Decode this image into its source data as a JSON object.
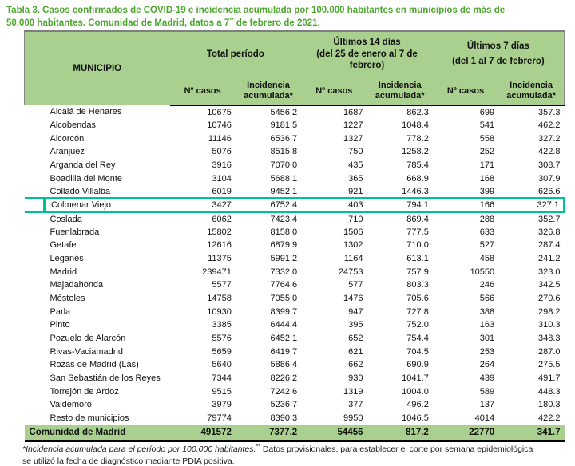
{
  "title": {
    "line1": "Tabla 3. Casos confirmados de COVID-19 e incidencia acumulada por 100.000 habitantes en municipios de más de",
    "line2_prefix": "50.000 habitantes. Comunidad de Madrid, datos a 7",
    "line2_superscript": "**",
    "line2_suffix": " de febrero de 2021."
  },
  "table": {
    "corner_header": "MUNICIPIO",
    "column_groups": [
      {
        "line1": "Total período",
        "line2": ""
      },
      {
        "line1": "Últimos 14 días",
        "line2": "(del 25 de enero al 7 de febrero)"
      },
      {
        "line1": "Últimos 7 días",
        "line2": "(del 1 al 7 de febrero)"
      }
    ],
    "sub_columns": [
      "Nº casos",
      "Incidencia acumulada*",
      "Nº casos",
      "Incidencia acumulada*",
      "Nº casos",
      "Incidencia acumulada*"
    ],
    "rows": [
      {
        "municipio": "Alcalá de Henares",
        "values": [
          "10675",
          "5456.2",
          "1687",
          "862.3",
          "699",
          "357.3"
        ],
        "highlighted": false
      },
      {
        "municipio": "Alcobendas",
        "values": [
          "10746",
          "9181.5",
          "1227",
          "1048.4",
          "541",
          "462.2"
        ],
        "highlighted": false
      },
      {
        "municipio": "Alcorcón",
        "values": [
          "11146",
          "6536.7",
          "1327",
          "778.2",
          "558",
          "327.2"
        ],
        "highlighted": false
      },
      {
        "municipio": "Aranjuez",
        "values": [
          "5076",
          "8515.8",
          "750",
          "1258.2",
          "252",
          "422.8"
        ],
        "highlighted": false
      },
      {
        "municipio": "Arganda del Rey",
        "values": [
          "3916",
          "7070.0",
          "435",
          "785.4",
          "171",
          "308.7"
        ],
        "highlighted": false
      },
      {
        "municipio": "Boadilla del Monte",
        "values": [
          "3104",
          "5688.1",
          "365",
          "668.9",
          "168",
          "307.9"
        ],
        "highlighted": false
      },
      {
        "municipio": "Collado Villalba",
        "values": [
          "6019",
          "9452.1",
          "921",
          "1446.3",
          "399",
          "626.6"
        ],
        "highlighted": false
      },
      {
        "municipio": "Colmenar Viejo",
        "values": [
          "3427",
          "6752.4",
          "403",
          "794.1",
          "166",
          "327.1"
        ],
        "highlighted": true
      },
      {
        "municipio": "Coslada",
        "values": [
          "6062",
          "7423.4",
          "710",
          "869.4",
          "288",
          "352.7"
        ],
        "highlighted": false
      },
      {
        "municipio": "Fuenlabrada",
        "values": [
          "15802",
          "8158.0",
          "1506",
          "777.5",
          "633",
          "326.8"
        ],
        "highlighted": false
      },
      {
        "municipio": "Getafe",
        "values": [
          "12616",
          "6879.9",
          "1302",
          "710.0",
          "527",
          "287.4"
        ],
        "highlighted": false
      },
      {
        "municipio": "Leganés",
        "values": [
          "11375",
          "5991.2",
          "1164",
          "613.1",
          "458",
          "241.2"
        ],
        "highlighted": false
      },
      {
        "municipio": "Madrid",
        "values": [
          "239471",
          "7332.0",
          "24753",
          "757.9",
          "10550",
          "323.0"
        ],
        "highlighted": false
      },
      {
        "municipio": "Majadahonda",
        "values": [
          "5577",
          "7764.6",
          "577",
          "803.3",
          "246",
          "342.5"
        ],
        "highlighted": false
      },
      {
        "municipio": "Móstoles",
        "values": [
          "14758",
          "7055.0",
          "1476",
          "705.6",
          "566",
          "270.6"
        ],
        "highlighted": false
      },
      {
        "municipio": "Parla",
        "values": [
          "10930",
          "8399.7",
          "947",
          "727.8",
          "388",
          "298.2"
        ],
        "highlighted": false
      },
      {
        "municipio": "Pinto",
        "values": [
          "3385",
          "6444.4",
          "395",
          "752.0",
          "163",
          "310.3"
        ],
        "highlighted": false
      },
      {
        "municipio": "Pozuelo de Alarcón",
        "values": [
          "5576",
          "6452.1",
          "652",
          "754.4",
          "301",
          "348.3"
        ],
        "highlighted": false
      },
      {
        "municipio": "Rivas-Vaciamadrid",
        "values": [
          "5659",
          "6419.7",
          "621",
          "704.5",
          "253",
          "287.0"
        ],
        "highlighted": false
      },
      {
        "municipio": "Rozas de Madrid (Las)",
        "values": [
          "5640",
          "5886.4",
          "662",
          "690.9",
          "264",
          "275.5"
        ],
        "highlighted": false
      },
      {
        "municipio": "San Sebastián de los Reyes",
        "values": [
          "7344",
          "8226.2",
          "930",
          "1041.7",
          "439",
          "491.7"
        ],
        "highlighted": false
      },
      {
        "municipio": "Torrejón de Ardoz",
        "values": [
          "9515",
          "7242.6",
          "1319",
          "1004.0",
          "589",
          "448.3"
        ],
        "highlighted": false
      },
      {
        "municipio": "Valdemoro",
        "values": [
          "3979",
          "5236.7",
          "377",
          "496.2",
          "137",
          "180.3"
        ],
        "highlighted": false
      },
      {
        "municipio": "Resto de municipios",
        "values": [
          "79774",
          "8390.3",
          "9950",
          "1046.5",
          "4014",
          "422.2"
        ],
        "highlighted": false
      }
    ],
    "total_row": {
      "municipio": "Comunidad de Madrid",
      "values": [
        "491572",
        "7377.2",
        "54456",
        "817.2",
        "22770",
        "341.7"
      ]
    }
  },
  "footnote": {
    "italic_part": "*Incidencia acumulada para el período por 100.000 habitantes.",
    "superscript": "**",
    "regular_part": " Datos provisionales, para establecer el corte por semana epidemiológica se utilizó la fecha de diagnóstico mediante PDIA positiva."
  },
  "colors": {
    "header_background": "#A9D08E",
    "title_text": "#4EA72E",
    "highlight_box": "#00C096"
  }
}
